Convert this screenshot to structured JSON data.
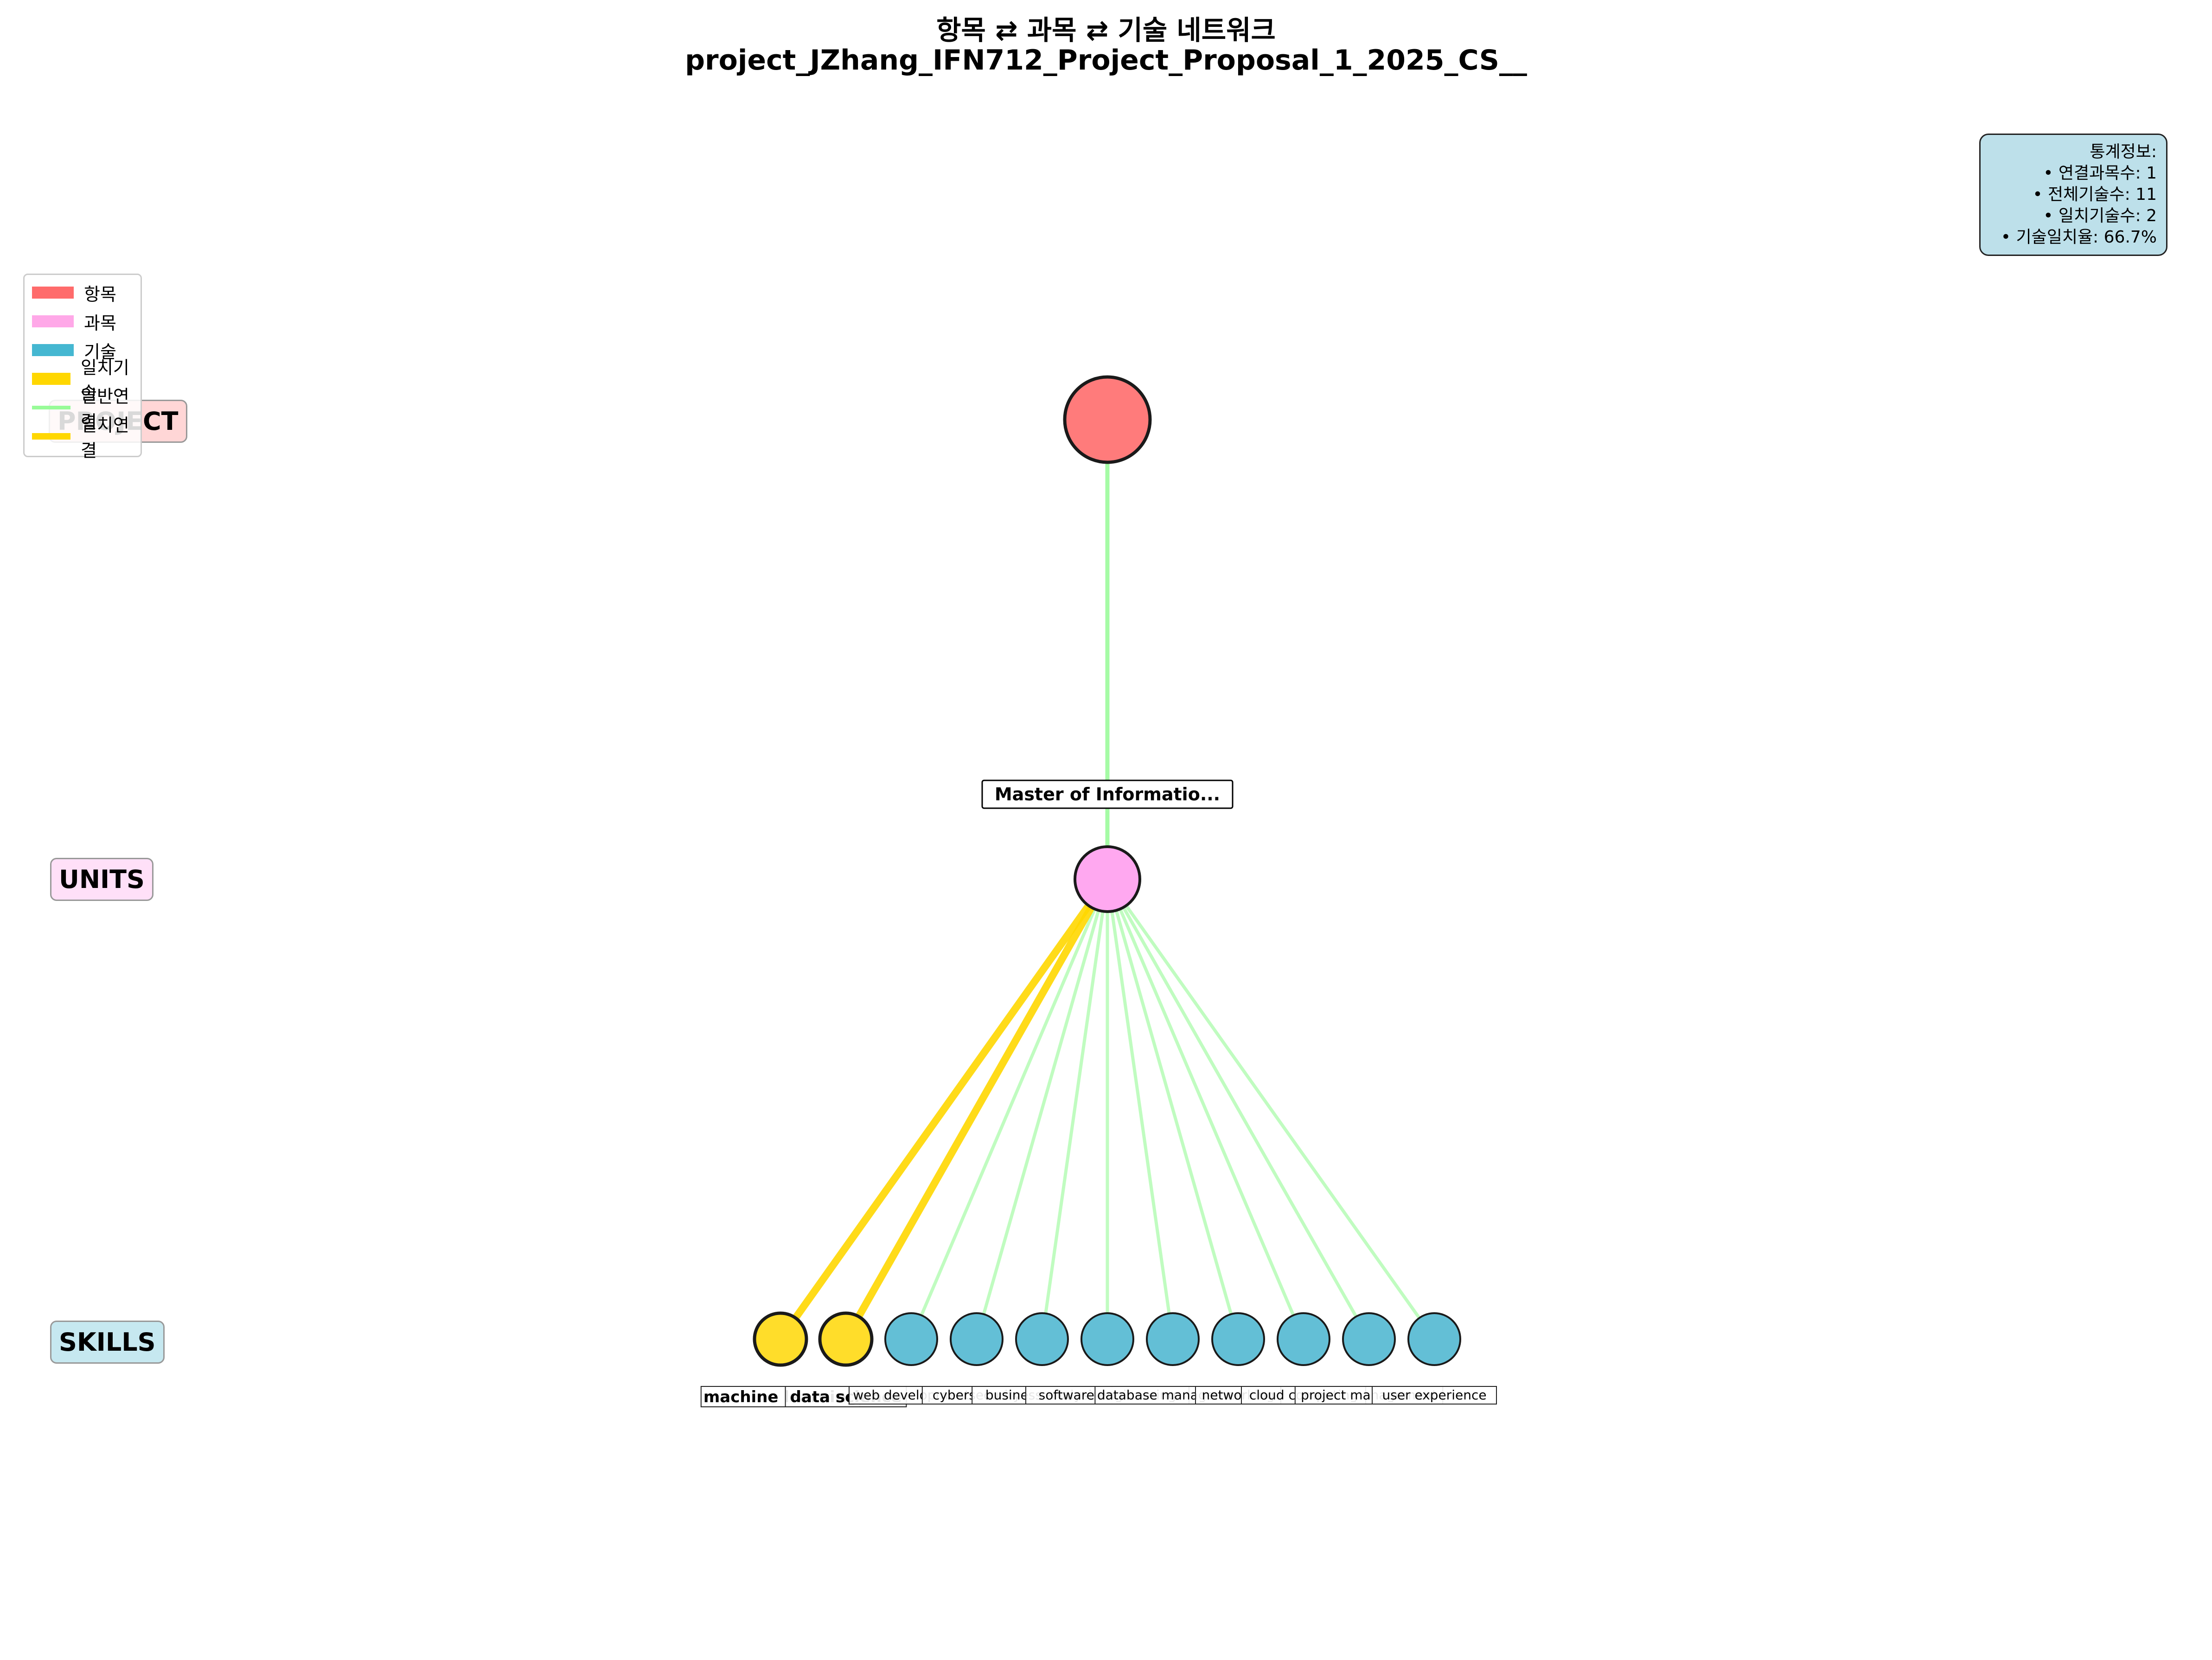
{
  "title": {
    "line1": "항목 ⇄ 과목 ⇄ 기술 네트워크",
    "line2": "project_JZhang_IFN712_Project_Proposal_1_2025_CS__"
  },
  "tiers": {
    "project": "PROJECT",
    "units": "UNITS",
    "skills": "SKILLS"
  },
  "legend": [
    {
      "label": "항목",
      "kind": "patch",
      "color": "#ff6b6b"
    },
    {
      "label": "과목",
      "kind": "patch",
      "color": "#ffa8e8"
    },
    {
      "label": "기술",
      "kind": "patch",
      "color": "#45b7d1"
    },
    {
      "label": "일치기술",
      "kind": "patch",
      "color": "#ffd700"
    },
    {
      "label": "일반연결",
      "kind": "line",
      "color": "#98fb98"
    },
    {
      "label": "일치연결",
      "kind": "line",
      "color": "#ffd700"
    }
  ],
  "stats": {
    "heading": "통계정보:",
    "items": [
      "• 연결과목수: 1",
      "• 전체기술수: 11",
      "• 일치기술수: 2",
      "• 기술일치율: 66.7%"
    ]
  },
  "colors": {
    "project_node": "#ff7b7b",
    "unit_node": "#ffa8f0",
    "skill_node": "#63bfd6",
    "matched_node": "#ffdd2a",
    "normal_edge": "#a5fba5",
    "matched_edge": "#ffd700"
  },
  "graph": {
    "project": {
      "label": ""
    },
    "units": [
      {
        "label": "Master of Informatio..."
      }
    ],
    "skills": [
      {
        "label": "machine learning",
        "matched": true
      },
      {
        "label": "data science",
        "matched": true
      },
      {
        "label": "web development",
        "matched": false
      },
      {
        "label": "cybersecurity",
        "matched": false
      },
      {
        "label": "business analysis",
        "matched": false
      },
      {
        "label": "software engineering",
        "matched": false
      },
      {
        "label": "database management",
        "matched": false
      },
      {
        "label": "networking",
        "matched": false
      },
      {
        "label": "cloud computing",
        "matched": false
      },
      {
        "label": "project management",
        "matched": false
      },
      {
        "label": "user experience",
        "matched": false
      }
    ]
  }
}
